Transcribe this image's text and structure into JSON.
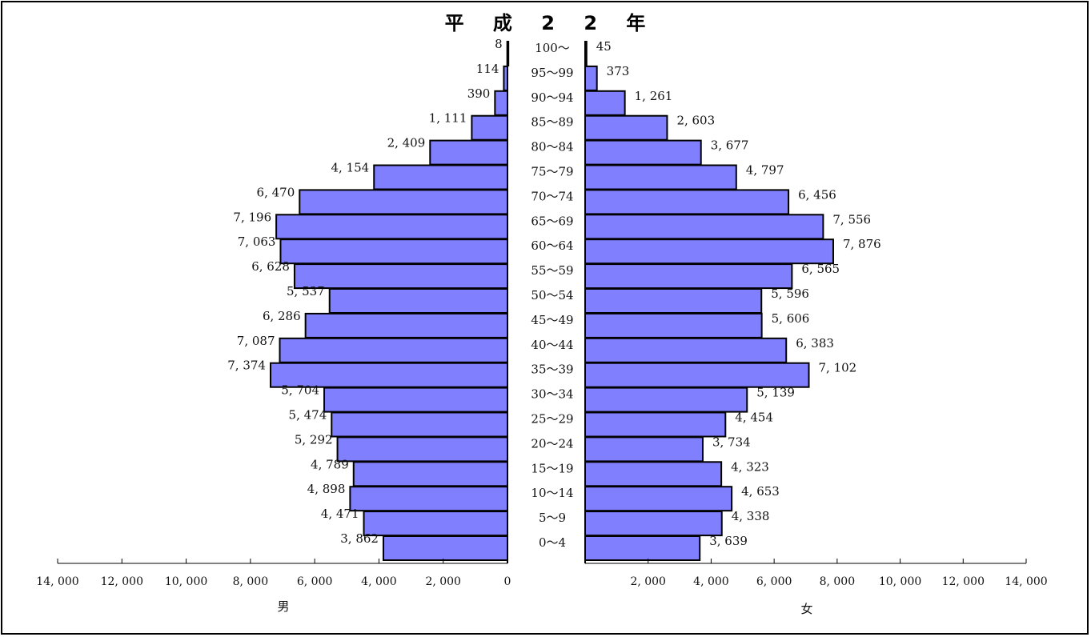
{
  "chart_data": {
    "type": "bar",
    "title": "平 成 2 2 年",
    "categories": [
      "100～",
      "95～99",
      "90～94",
      "85～89",
      "80～84",
      "75～79",
      "70～74",
      "65～69",
      "60～64",
      "55～59",
      "50～54",
      "45～49",
      "40～44",
      "35～39",
      "30～34",
      "25～29",
      "20～24",
      "15～19",
      "10～14",
      "5～9",
      "0～4"
    ],
    "series": [
      {
        "name": "男",
        "values": [
          8,
          114,
          390,
          1111,
          2409,
          4154,
          6470,
          7196,
          7063,
          6628,
          5537,
          6286,
          7087,
          7374,
          5704,
          5474,
          5292,
          4789,
          4898,
          4471,
          3862
        ],
        "labels": [
          "8",
          "114",
          "390",
          "1, 111",
          "2, 409",
          "4, 154",
          "6, 470",
          "7, 196",
          "7, 063",
          "6, 628",
          "5, 537",
          "6, 286",
          "7, 087",
          "7, 374",
          "5, 704",
          "5, 474",
          "5, 292",
          "4, 789",
          "4, 898",
          "4, 471",
          "3, 862"
        ]
      },
      {
        "name": "女",
        "values": [
          45,
          373,
          1261,
          2603,
          3677,
          4797,
          6456,
          7556,
          7876,
          6565,
          5596,
          5606,
          6383,
          7102,
          5139,
          4454,
          3734,
          4323,
          4653,
          4338,
          3639
        ],
        "labels": [
          "45",
          "373",
          "1, 261",
          "2, 603",
          "3, 677",
          "4, 797",
          "6, 456",
          "7, 556",
          "7, 876",
          "6, 565",
          "5, 596",
          "5, 606",
          "6, 383",
          "7, 102",
          "5, 139",
          "4, 454",
          "3, 734",
          "4, 323",
          "4, 653",
          "4, 338",
          "3, 639"
        ]
      }
    ],
    "xlim": [
      0,
      14000
    ],
    "left_axis_ticks": [
      "14, 000",
      "12, 000",
      "10, 000",
      "8, 000",
      "6, 000",
      "4, 000",
      "2, 000",
      "0"
    ],
    "right_axis_ticks": [
      "2, 000",
      "4, 000",
      "6, 000",
      "8, 000",
      "10, 000",
      "12, 000",
      "14, 000"
    ],
    "xlabel_left": "男",
    "xlabel_right": "女",
    "grid": false,
    "bar_color": "#8080ff",
    "bar_edge_color": "#000000"
  }
}
